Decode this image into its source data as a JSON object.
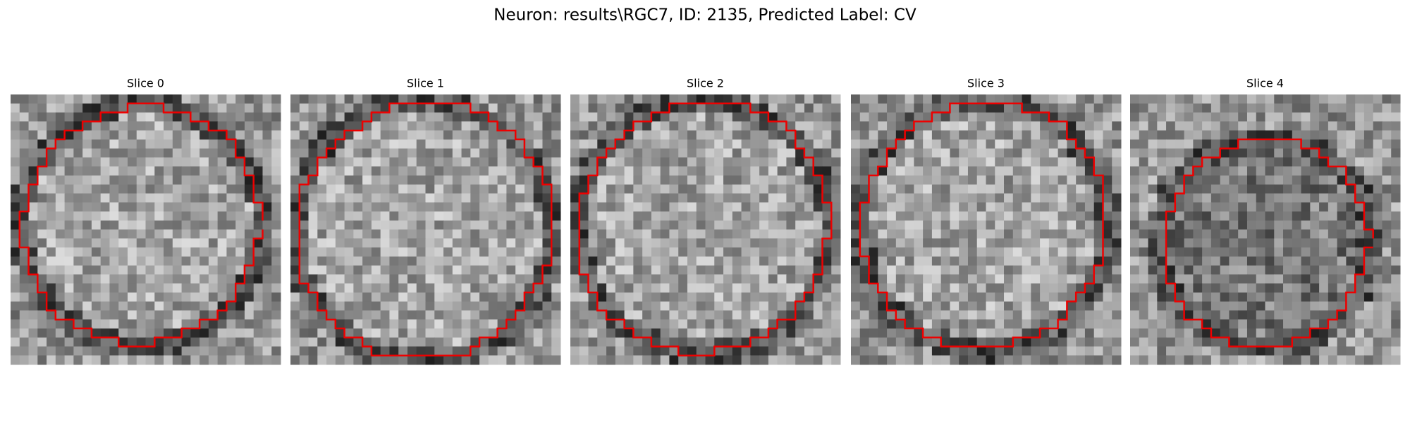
{
  "title": "Neuron: results\\RGC7, ID: 2135, Predicted Label: CV",
  "panels": [
    {
      "title": "Slice 0"
    },
    {
      "title": "Slice 1"
    },
    {
      "title": "Slice 2"
    },
    {
      "title": "Slice 3"
    },
    {
      "title": "Slice 4"
    }
  ]
}
